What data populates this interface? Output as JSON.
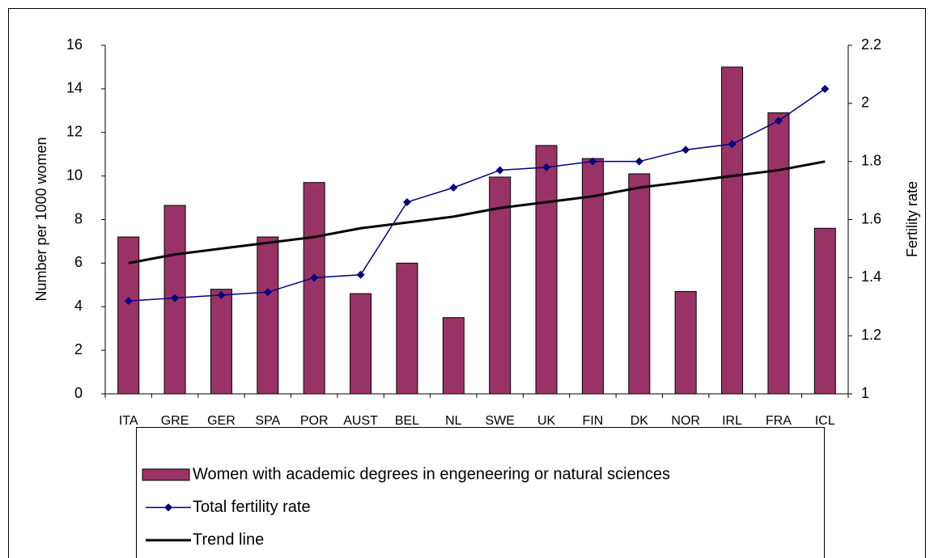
{
  "chart_data": {
    "type": "bar",
    "categories": [
      "ITA",
      "GRE",
      "GER",
      "SPA",
      "POR",
      "AUST",
      "BEL",
      "NL",
      "SWE",
      "UK",
      "FIN",
      "DK",
      "NOR",
      "IRL",
      "FRA",
      "ICL"
    ],
    "ylabel": "Number per 1000 women",
    "y2label": "Fertility rate",
    "ylim": [
      0,
      16
    ],
    "yticks": [
      0,
      2,
      4,
      6,
      8,
      10,
      12,
      14,
      16
    ],
    "y2lim": [
      1,
      2.2
    ],
    "y2ticks": [
      1,
      1.2,
      1.4,
      1.6,
      1.8,
      2,
      2.2
    ],
    "series": [
      {
        "name": "Women with academic degrees in engeneering or natural sciences",
        "type": "bar",
        "color": "#993366",
        "values": [
          7.2,
          8.65,
          4.8,
          7.2,
          9.7,
          4.6,
          6.0,
          3.5,
          9.95,
          11.4,
          10.8,
          10.1,
          4.7,
          15.0,
          12.9,
          7.6
        ]
      },
      {
        "name": "Total fertility rate",
        "type": "line",
        "axis": "y2",
        "color": "#000080",
        "marker": "diamond",
        "values": [
          1.32,
          1.33,
          1.34,
          1.35,
          1.4,
          1.41,
          1.66,
          1.71,
          1.77,
          1.78,
          1.8,
          1.8,
          1.84,
          1.86,
          1.94,
          2.05
        ]
      },
      {
        "name": "Trend line",
        "type": "line",
        "axis": "y2",
        "color": "#000000",
        "values": [
          1.45,
          1.48,
          1.5,
          1.52,
          1.54,
          1.57,
          1.59,
          1.61,
          1.64,
          1.66,
          1.68,
          1.71,
          1.73,
          1.75,
          1.77,
          1.8
        ]
      }
    ]
  }
}
